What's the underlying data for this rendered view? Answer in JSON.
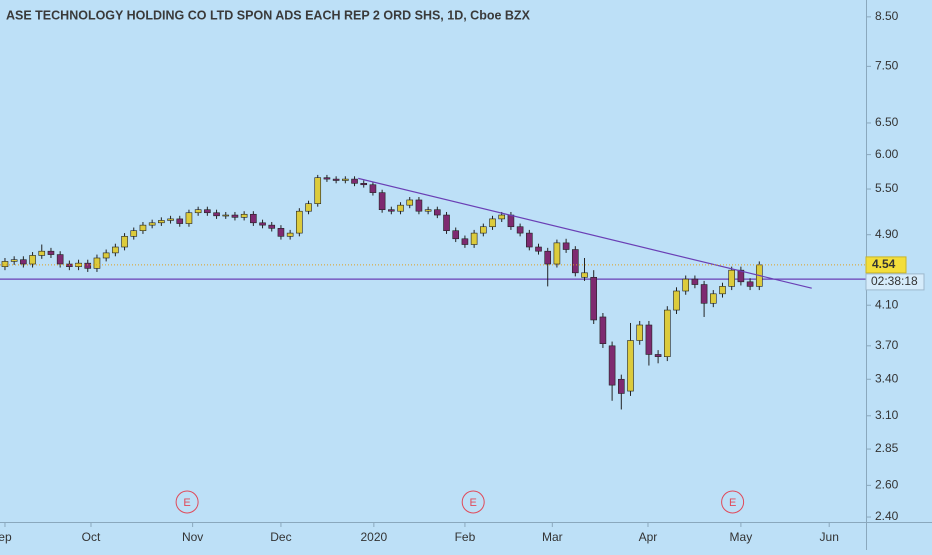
{
  "chart_data": {
    "type": "candlestick",
    "title": "ASE TECHNOLOGY HOLDING CO LTD SPON ADS EACH REP 2 ORD SHS, 1D, Cboe BZX",
    "log_scale": true,
    "up_color": "#dccb3c",
    "down_color": "#7e2a70",
    "background": "#bde0f7",
    "open": [
      4.52,
      4.58,
      4.6,
      4.55,
      4.65,
      4.7,
      4.66,
      4.55,
      4.52,
      4.56,
      4.5,
      4.62,
      4.68,
      4.75,
      4.88,
      4.95,
      5.02,
      5.05,
      5.08,
      5.1,
      5.04,
      5.18,
      5.22,
      5.18,
      5.14,
      5.15,
      5.12,
      5.16,
      5.05,
      5.02,
      4.98,
      4.88,
      4.92,
      5.2,
      5.3,
      5.66,
      5.64,
      5.62,
      5.64,
      5.58,
      5.56,
      5.45,
      5.22,
      5.2,
      5.28,
      5.35,
      5.2,
      5.22,
      5.15,
      4.95,
      4.85,
      4.78,
      4.92,
      5.0,
      5.1,
      5.15,
      5.0,
      4.92,
      4.75,
      4.7,
      4.55,
      4.8,
      4.72,
      4.4,
      4.4,
      3.98,
      3.7,
      3.4,
      3.3,
      3.75,
      3.9,
      3.62,
      3.6,
      4.05,
      4.25,
      4.38,
      4.32,
      4.12,
      4.22,
      4.3,
      4.48,
      4.35,
      4.3
    ],
    "high": [
      4.62,
      4.64,
      4.64,
      4.69,
      4.78,
      4.74,
      4.7,
      4.59,
      4.6,
      4.6,
      4.66,
      4.72,
      4.79,
      4.92,
      4.99,
      5.06,
      5.09,
      5.12,
      5.14,
      5.14,
      5.22,
      5.26,
      5.26,
      5.22,
      5.19,
      5.19,
      5.2,
      5.2,
      5.09,
      5.06,
      5.02,
      4.96,
      5.24,
      5.34,
      5.7,
      5.7,
      5.68,
      5.68,
      5.68,
      5.62,
      5.6,
      5.49,
      5.26,
      5.32,
      5.39,
      5.39,
      5.26,
      5.26,
      5.19,
      4.99,
      4.89,
      4.96,
      5.04,
      5.14,
      5.19,
      5.19,
      5.04,
      4.96,
      4.79,
      4.74,
      4.84,
      4.85,
      4.76,
      4.62,
      4.48,
      4.02,
      3.74,
      3.44,
      3.92,
      3.94,
      3.94,
      3.66,
      4.09,
      4.29,
      4.42,
      4.42,
      4.36,
      4.26,
      4.34,
      4.52,
      4.52,
      4.39,
      4.58
    ],
    "low": [
      4.48,
      4.54,
      4.51,
      4.51,
      4.61,
      4.62,
      4.51,
      4.48,
      4.48,
      4.46,
      4.46,
      4.58,
      4.64,
      4.71,
      4.84,
      4.91,
      4.98,
      5.01,
      5.04,
      5.0,
      5.0,
      5.14,
      5.14,
      5.1,
      5.1,
      5.08,
      5.08,
      5.01,
      4.98,
      4.94,
      4.84,
      4.84,
      4.88,
      5.16,
      5.26,
      5.6,
      5.58,
      5.58,
      5.54,
      5.52,
      5.41,
      5.18,
      5.16,
      5.16,
      5.24,
      5.16,
      5.16,
      5.11,
      4.91,
      4.81,
      4.74,
      4.74,
      4.88,
      4.96,
      5.06,
      4.96,
      4.88,
      4.71,
      4.66,
      4.3,
      4.51,
      4.68,
      4.41,
      4.36,
      3.91,
      3.68,
      3.22,
      3.15,
      3.26,
      3.71,
      3.52,
      3.54,
      3.56,
      4.01,
      4.21,
      4.28,
      3.98,
      4.08,
      4.18,
      4.26,
      4.31,
      4.26,
      4.26
    ],
    "close": [
      4.58,
      4.6,
      4.55,
      4.65,
      4.7,
      4.66,
      4.55,
      4.52,
      4.56,
      4.5,
      4.62,
      4.68,
      4.75,
      4.88,
      4.95,
      5.02,
      5.05,
      5.08,
      5.1,
      5.04,
      5.18,
      5.22,
      5.18,
      5.14,
      5.15,
      5.12,
      5.16,
      5.05,
      5.02,
      4.98,
      4.88,
      4.92,
      5.2,
      5.3,
      5.66,
      5.64,
      5.62,
      5.64,
      5.58,
      5.56,
      5.45,
      5.22,
      5.2,
      5.28,
      5.35,
      5.2,
      5.22,
      5.15,
      4.95,
      4.85,
      4.78,
      4.92,
      5.0,
      5.1,
      5.15,
      5.0,
      4.92,
      4.75,
      4.7,
      4.55,
      4.8,
      4.72,
      4.45,
      4.45,
      3.95,
      3.72,
      3.35,
      3.28,
      3.75,
      3.9,
      3.62,
      3.6,
      4.05,
      4.25,
      4.38,
      4.32,
      4.12,
      4.22,
      4.3,
      4.48,
      4.35,
      4.3,
      4.54
    ],
    "xlim": [
      -0.54,
      93.6
    ],
    "xticks": [
      {
        "value": 0,
        "label": "ep"
      },
      {
        "value": 9.35,
        "label": "Oct"
      },
      {
        "value": 20.4,
        "label": "Nov"
      },
      {
        "value": 30,
        "label": "Dec"
      },
      {
        "value": 40.1,
        "label": "2020"
      },
      {
        "value": 50,
        "label": "Feb"
      },
      {
        "value": 59.5,
        "label": "Mar"
      },
      {
        "value": 69.9,
        "label": "Apr"
      },
      {
        "value": 80,
        "label": "May"
      },
      {
        "value": 89.6,
        "label": "Jun"
      }
    ],
    "ylim": [
      2.37,
      8.87
    ],
    "yticks": [
      {
        "value": 2.4,
        "label": "2.40"
      },
      {
        "value": 2.6,
        "label": "2.60"
      },
      2.85,
      {
        "value": 3.1,
        "label": "3.10"
      },
      {
        "value": 3.4,
        "label": "3.40"
      },
      {
        "value": 3.7,
        "label": "3.70"
      },
      {
        "value": 4.1,
        "label": "4.10"
      },
      {
        "value": 4.9,
        "label": "4.90"
      },
      {
        "value": 5.5,
        "label": "5.50"
      },
      {
        "value": 6,
        "label": "6.00"
      },
      {
        "value": 6.5,
        "label": "6.50"
      },
      {
        "value": 7.5,
        "label": "7.50"
      },
      {
        "value": 8.5,
        "label": "8.50"
      }
    ],
    "countdown": "02:38:18",
    "horizontal_line": {
      "value": 4.38,
      "color": "#6a3fb5"
    },
    "trend_line": {
      "from": [
        38.4,
        5.65
      ],
      "to": [
        87.7,
        4.28
      ],
      "color": "#6a3fb5"
    },
    "events": [
      {
        "x": 19.8,
        "label": "E"
      },
      {
        "x": 50.9,
        "label": "E"
      },
      {
        "x": 79.1,
        "label": "E"
      }
    ]
  }
}
